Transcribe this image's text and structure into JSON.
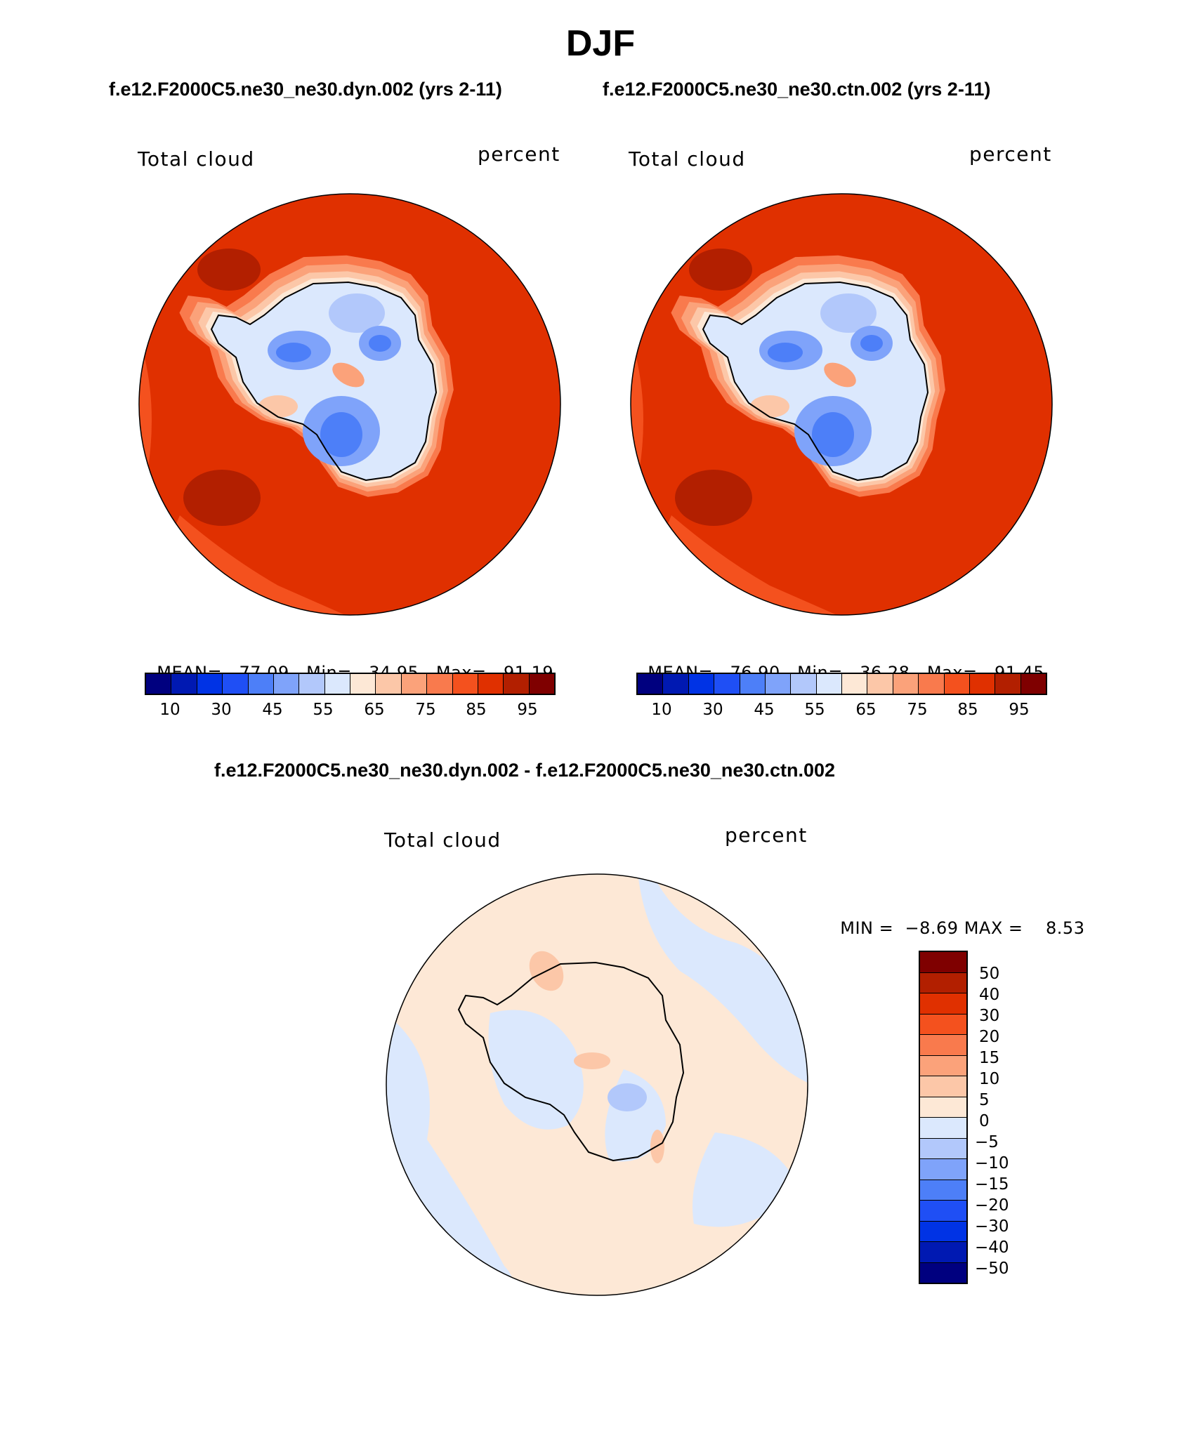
{
  "season": "DJF",
  "top_subtitle_left": "f.e12.F2000C5.ne30_ne30.dyn.002 (yrs 2-11)",
  "top_subtitle_right": "f.e12.F2000C5.ne30_ne30.ctn.002 (yrs 2-11)",
  "diff_subtitle": "f.e12.F2000C5.ne30_ne30.dyn.002 - f.e12.F2000C5.ne30_ne30.ctn.002",
  "panels": [
    {
      "variable": "Total cloud",
      "units": "percent",
      "mean_label": "MEAN=",
      "mean": "77.09",
      "min_label": "Min=",
      "min": "34.95",
      "max_label": "Max=",
      "max": "91.19"
    },
    {
      "variable": "Total cloud",
      "units": "percent",
      "mean_label": "MEAN=",
      "mean": "76.90",
      "min_label": "Min=",
      "min": "36.28",
      "max_label": "Max=",
      "max": "91.45"
    }
  ],
  "abs_colorbar": {
    "colors": [
      "#00007f",
      "#0019b2",
      "#0033e5",
      "#1f4ff5",
      "#4d7ff8",
      "#7fa3fa",
      "#b2c8fb",
      "#dbe8fd",
      "#fde8d6",
      "#fcc7a8",
      "#fba27a",
      "#f97a4d",
      "#f4511e",
      "#e03000",
      "#b21f00",
      "#7f0000"
    ],
    "tick_labels": [
      "10",
      "30",
      "45",
      "55",
      "65",
      "75",
      "85",
      "95"
    ]
  },
  "diff_panel": {
    "variable": "Total cloud",
    "units": "percent",
    "min_label": "MIN =",
    "min": "−8.69",
    "max_label": "MAX =",
    "max": "8.53"
  },
  "diff_colorbar": {
    "colors": [
      "#7f0000",
      "#b21f00",
      "#e03000",
      "#f4511e",
      "#f97a4d",
      "#fba27a",
      "#fcc7a8",
      "#fde8d6",
      "#dbe8fd",
      "#b2c8fb",
      "#7fa3fa",
      "#4d7ff8",
      "#1f4ff5",
      "#0033e5",
      "#0019b2",
      "#00007f"
    ],
    "tick_labels": [
      "50",
      "40",
      "30",
      "20",
      "15",
      "10",
      "5",
      "0",
      "−5",
      "−10",
      "−15",
      "−20",
      "−30",
      "−40",
      "−50"
    ]
  },
  "map_colors": {
    "ocean": "#e03000",
    "ocean_mid": "#f4511e",
    "ocean_dark": "#b21f00",
    "coast1": "#f97a4d",
    "coast2": "#fba27a",
    "coast3": "#fcc7a8",
    "coast4": "#fde8d6",
    "ice1": "#dbe8fd",
    "ice2": "#b2c8fb",
    "ice3": "#7fa3fa",
    "ice4": "#4d7ff8",
    "ice5": "#1f4ff5",
    "diff_pos": "#fde8d6",
    "diff_neg": "#dbe8fd",
    "diff_neg2": "#b2c8fb",
    "diff_pos2": "#fcc7a8"
  }
}
